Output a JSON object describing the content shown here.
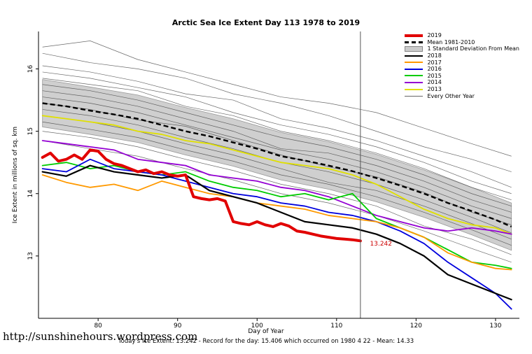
{
  "title": "Arctic Sea Ice Extent Day 113 1978 to 2019",
  "url_text": "http://sunshinehours.wordpress.com",
  "footer": "Today's Ice Extent: 13.242  - Record for the day: 15.406 which occurred on 1980 4 22  - Mean: 14.33",
  "legend": {
    "items": [
      {
        "label": "2019",
        "color": "#e10000",
        "type": "line-thick"
      },
      {
        "label": "Mean 1981-2010",
        "color": "#000000",
        "type": "line-dashed"
      },
      {
        "label": "1 Standard Deviation From Mean",
        "color": "#cccccc",
        "type": "box"
      },
      {
        "label": "2018",
        "color": "#000000",
        "type": "line"
      },
      {
        "label": "2017",
        "color": "#ff9900",
        "type": "line"
      },
      {
        "label": "2016",
        "color": "#0000dd",
        "type": "line"
      },
      {
        "label": "2015",
        "color": "#00cc00",
        "type": "line"
      },
      {
        "label": "2014",
        "color": "#9400d3",
        "type": "line"
      },
      {
        "label": "2013",
        "color": "#e0e000",
        "type": "line"
      },
      {
        "label": "Every Other Year",
        "color": "#666666",
        "type": "line-thin"
      }
    ]
  },
  "chart_data": {
    "type": "line",
    "title": "Arctic Sea Ice Extent Day 113 1978 to 2019",
    "xlabel": "Day of Year",
    "ylabel": "Ice Extent in millions of sq. km",
    "xlim": [
      72.5,
      133
    ],
    "ylim": [
      12.0,
      16.6
    ],
    "x_ticks": [
      80,
      90,
      100,
      110,
      120,
      130
    ],
    "y_ticks": [
      13,
      14,
      15,
      16
    ],
    "grid": false,
    "legend_position": "top-right",
    "vline_x": 113,
    "annotation": {
      "text": "13.242",
      "x": 114.2,
      "y": 13.2,
      "color": "#cc0000"
    },
    "band": {
      "name": "1 Standard Deviation From Mean",
      "fill": "#cfcfcf",
      "x": [
        73,
        79,
        85,
        91,
        97,
        103,
        109,
        115,
        121,
        127,
        132
      ],
      "upper": [
        15.83,
        15.71,
        15.58,
        15.38,
        15.2,
        14.98,
        14.83,
        14.63,
        14.38,
        14.1,
        13.85
      ],
      "lower": [
        15.07,
        14.95,
        14.82,
        14.62,
        14.44,
        14.22,
        14.07,
        13.87,
        13.62,
        13.34,
        13.09
      ]
    },
    "mean_series": {
      "name": "Mean 1981-2010",
      "color": "#000000",
      "dashed": true,
      "x": [
        73,
        76,
        79,
        82,
        85,
        88,
        91,
        94,
        97,
        100,
        103,
        106,
        109,
        112,
        115,
        118,
        121,
        124,
        127,
        130,
        132
      ],
      "values": [
        15.45,
        15.4,
        15.33,
        15.27,
        15.2,
        15.1,
        15.0,
        14.92,
        14.82,
        14.72,
        14.6,
        14.53,
        14.45,
        14.36,
        14.25,
        14.13,
        14.0,
        13.85,
        13.72,
        13.58,
        13.47
      ]
    },
    "x_main": [
      73,
      76,
      79,
      82,
      85,
      88,
      91,
      94,
      97,
      100,
      103,
      106,
      109,
      112,
      115,
      118,
      121,
      124,
      127,
      130,
      132
    ],
    "series": [
      {
        "name": "2013",
        "color": "#e0e000",
        "width": 1.8,
        "values": [
          15.25,
          15.2,
          15.15,
          15.1,
          15.0,
          14.95,
          14.85,
          14.8,
          14.7,
          14.6,
          14.5,
          14.45,
          14.4,
          14.3,
          14.15,
          13.95,
          13.75,
          13.6,
          13.5,
          13.45,
          13.35
        ]
      },
      {
        "name": "2014",
        "color": "#9400d3",
        "width": 1.8,
        "values": [
          14.85,
          14.8,
          14.75,
          14.7,
          14.55,
          14.5,
          14.45,
          14.3,
          14.25,
          14.2,
          14.1,
          14.05,
          13.95,
          13.8,
          13.65,
          13.55,
          13.45,
          13.4,
          13.45,
          13.4,
          13.35
        ]
      },
      {
        "name": "2015",
        "color": "#00cc00",
        "width": 1.8,
        "values": [
          14.45,
          14.5,
          14.4,
          14.45,
          14.35,
          14.3,
          14.35,
          14.2,
          14.1,
          14.05,
          13.95,
          14.0,
          13.9,
          14.0,
          13.6,
          13.45,
          13.3,
          13.1,
          12.9,
          12.85,
          12.8
        ]
      },
      {
        "name": "2016",
        "color": "#0000dd",
        "width": 1.8,
        "values": [
          14.4,
          14.35,
          14.55,
          14.4,
          14.35,
          14.3,
          14.2,
          14.1,
          14.0,
          13.95,
          13.85,
          13.8,
          13.7,
          13.65,
          13.55,
          13.4,
          13.2,
          12.9,
          12.65,
          12.4,
          12.15
        ]
      },
      {
        "name": "2017",
        "color": "#ff9900",
        "width": 1.8,
        "values": [
          14.3,
          14.18,
          14.1,
          14.15,
          14.05,
          14.2,
          14.1,
          14.0,
          13.95,
          13.85,
          13.8,
          13.75,
          13.65,
          13.6,
          13.55,
          13.45,
          13.3,
          13.05,
          12.9,
          12.8,
          12.78
        ]
      },
      {
        "name": "2018",
        "color": "#000000",
        "width": 2.2,
        "values": [
          14.35,
          14.28,
          14.45,
          14.35,
          14.3,
          14.25,
          14.3,
          14.05,
          13.95,
          13.85,
          13.7,
          13.55,
          13.5,
          13.45,
          13.35,
          13.2,
          13.0,
          12.7,
          12.55,
          12.4,
          12.3
        ]
      },
      {
        "name": "2019",
        "color": "#e10000",
        "width": 4,
        "x": [
          73,
          74,
          75,
          76,
          77,
          78,
          79,
          80,
          81,
          82,
          83,
          84,
          85,
          86,
          87,
          88,
          89,
          90,
          91,
          92,
          93,
          94,
          95,
          96,
          97,
          98,
          99,
          100,
          101,
          102,
          103,
          104,
          105,
          106,
          107,
          108,
          109,
          110,
          111,
          112,
          113
        ],
        "values": [
          14.58,
          14.65,
          14.52,
          14.55,
          14.62,
          14.55,
          14.7,
          14.68,
          14.55,
          14.48,
          14.45,
          14.4,
          14.35,
          14.38,
          14.32,
          14.35,
          14.3,
          14.28,
          14.3,
          13.95,
          13.92,
          13.9,
          13.92,
          13.88,
          13.55,
          13.52,
          13.5,
          13.55,
          13.5,
          13.47,
          13.52,
          13.48,
          13.4,
          13.38,
          13.35,
          13.32,
          13.3,
          13.28,
          13.27,
          13.26,
          13.242
        ]
      }
    ],
    "other_years": {
      "name": "Every Other Year",
      "color": "#444444",
      "x": [
        73,
        79,
        85,
        91,
        97,
        103,
        109,
        115,
        121,
        127,
        132
      ],
      "lines": [
        [
          16.35,
          16.45,
          16.15,
          15.95,
          15.75,
          15.55,
          15.45,
          15.3,
          15.05,
          14.8,
          14.6
        ],
        [
          16.25,
          16.1,
          16.0,
          15.85,
          15.6,
          15.45,
          15.25,
          15.0,
          14.75,
          14.55,
          14.35
        ],
        [
          16.05,
          15.95,
          15.8,
          15.6,
          15.5,
          15.2,
          15.05,
          14.85,
          14.6,
          14.35,
          14.1
        ],
        [
          15.95,
          15.85,
          15.7,
          15.55,
          15.3,
          15.1,
          14.95,
          14.75,
          14.5,
          14.2,
          14.0
        ],
        [
          15.85,
          15.75,
          15.65,
          15.4,
          15.25,
          15.0,
          14.85,
          14.65,
          14.4,
          14.1,
          13.9
        ],
        [
          15.75,
          15.65,
          15.5,
          15.3,
          15.1,
          14.9,
          14.75,
          14.55,
          14.3,
          14.0,
          13.8
        ],
        [
          15.65,
          15.55,
          15.4,
          15.2,
          15.0,
          14.72,
          14.65,
          14.45,
          14.2,
          13.9,
          13.7
        ],
        [
          15.55,
          15.45,
          15.3,
          15.1,
          14.9,
          14.7,
          14.55,
          14.35,
          14.1,
          13.8,
          13.6
        ],
        [
          15.45,
          15.35,
          15.18,
          15.08,
          14.85,
          14.62,
          14.43,
          14.27,
          14.02,
          13.7,
          13.5
        ],
        [
          15.35,
          15.25,
          15.1,
          14.9,
          14.72,
          14.5,
          14.35,
          14.15,
          13.9,
          13.62,
          13.37
        ],
        [
          15.25,
          15.15,
          15.0,
          14.8,
          14.62,
          14.4,
          14.18,
          14.05,
          13.8,
          13.52,
          13.27
        ],
        [
          15.15,
          15.03,
          14.9,
          14.7,
          14.52,
          14.3,
          14.15,
          13.95,
          13.7,
          13.42,
          13.17
        ],
        [
          15.0,
          14.9,
          14.75,
          14.55,
          14.37,
          14.15,
          14.0,
          13.8,
          13.48,
          13.27,
          13.02
        ],
        [
          14.85,
          14.72,
          14.6,
          14.4,
          14.22,
          14.0,
          13.85,
          13.65,
          13.4,
          13.12,
          12.9
        ]
      ]
    }
  }
}
